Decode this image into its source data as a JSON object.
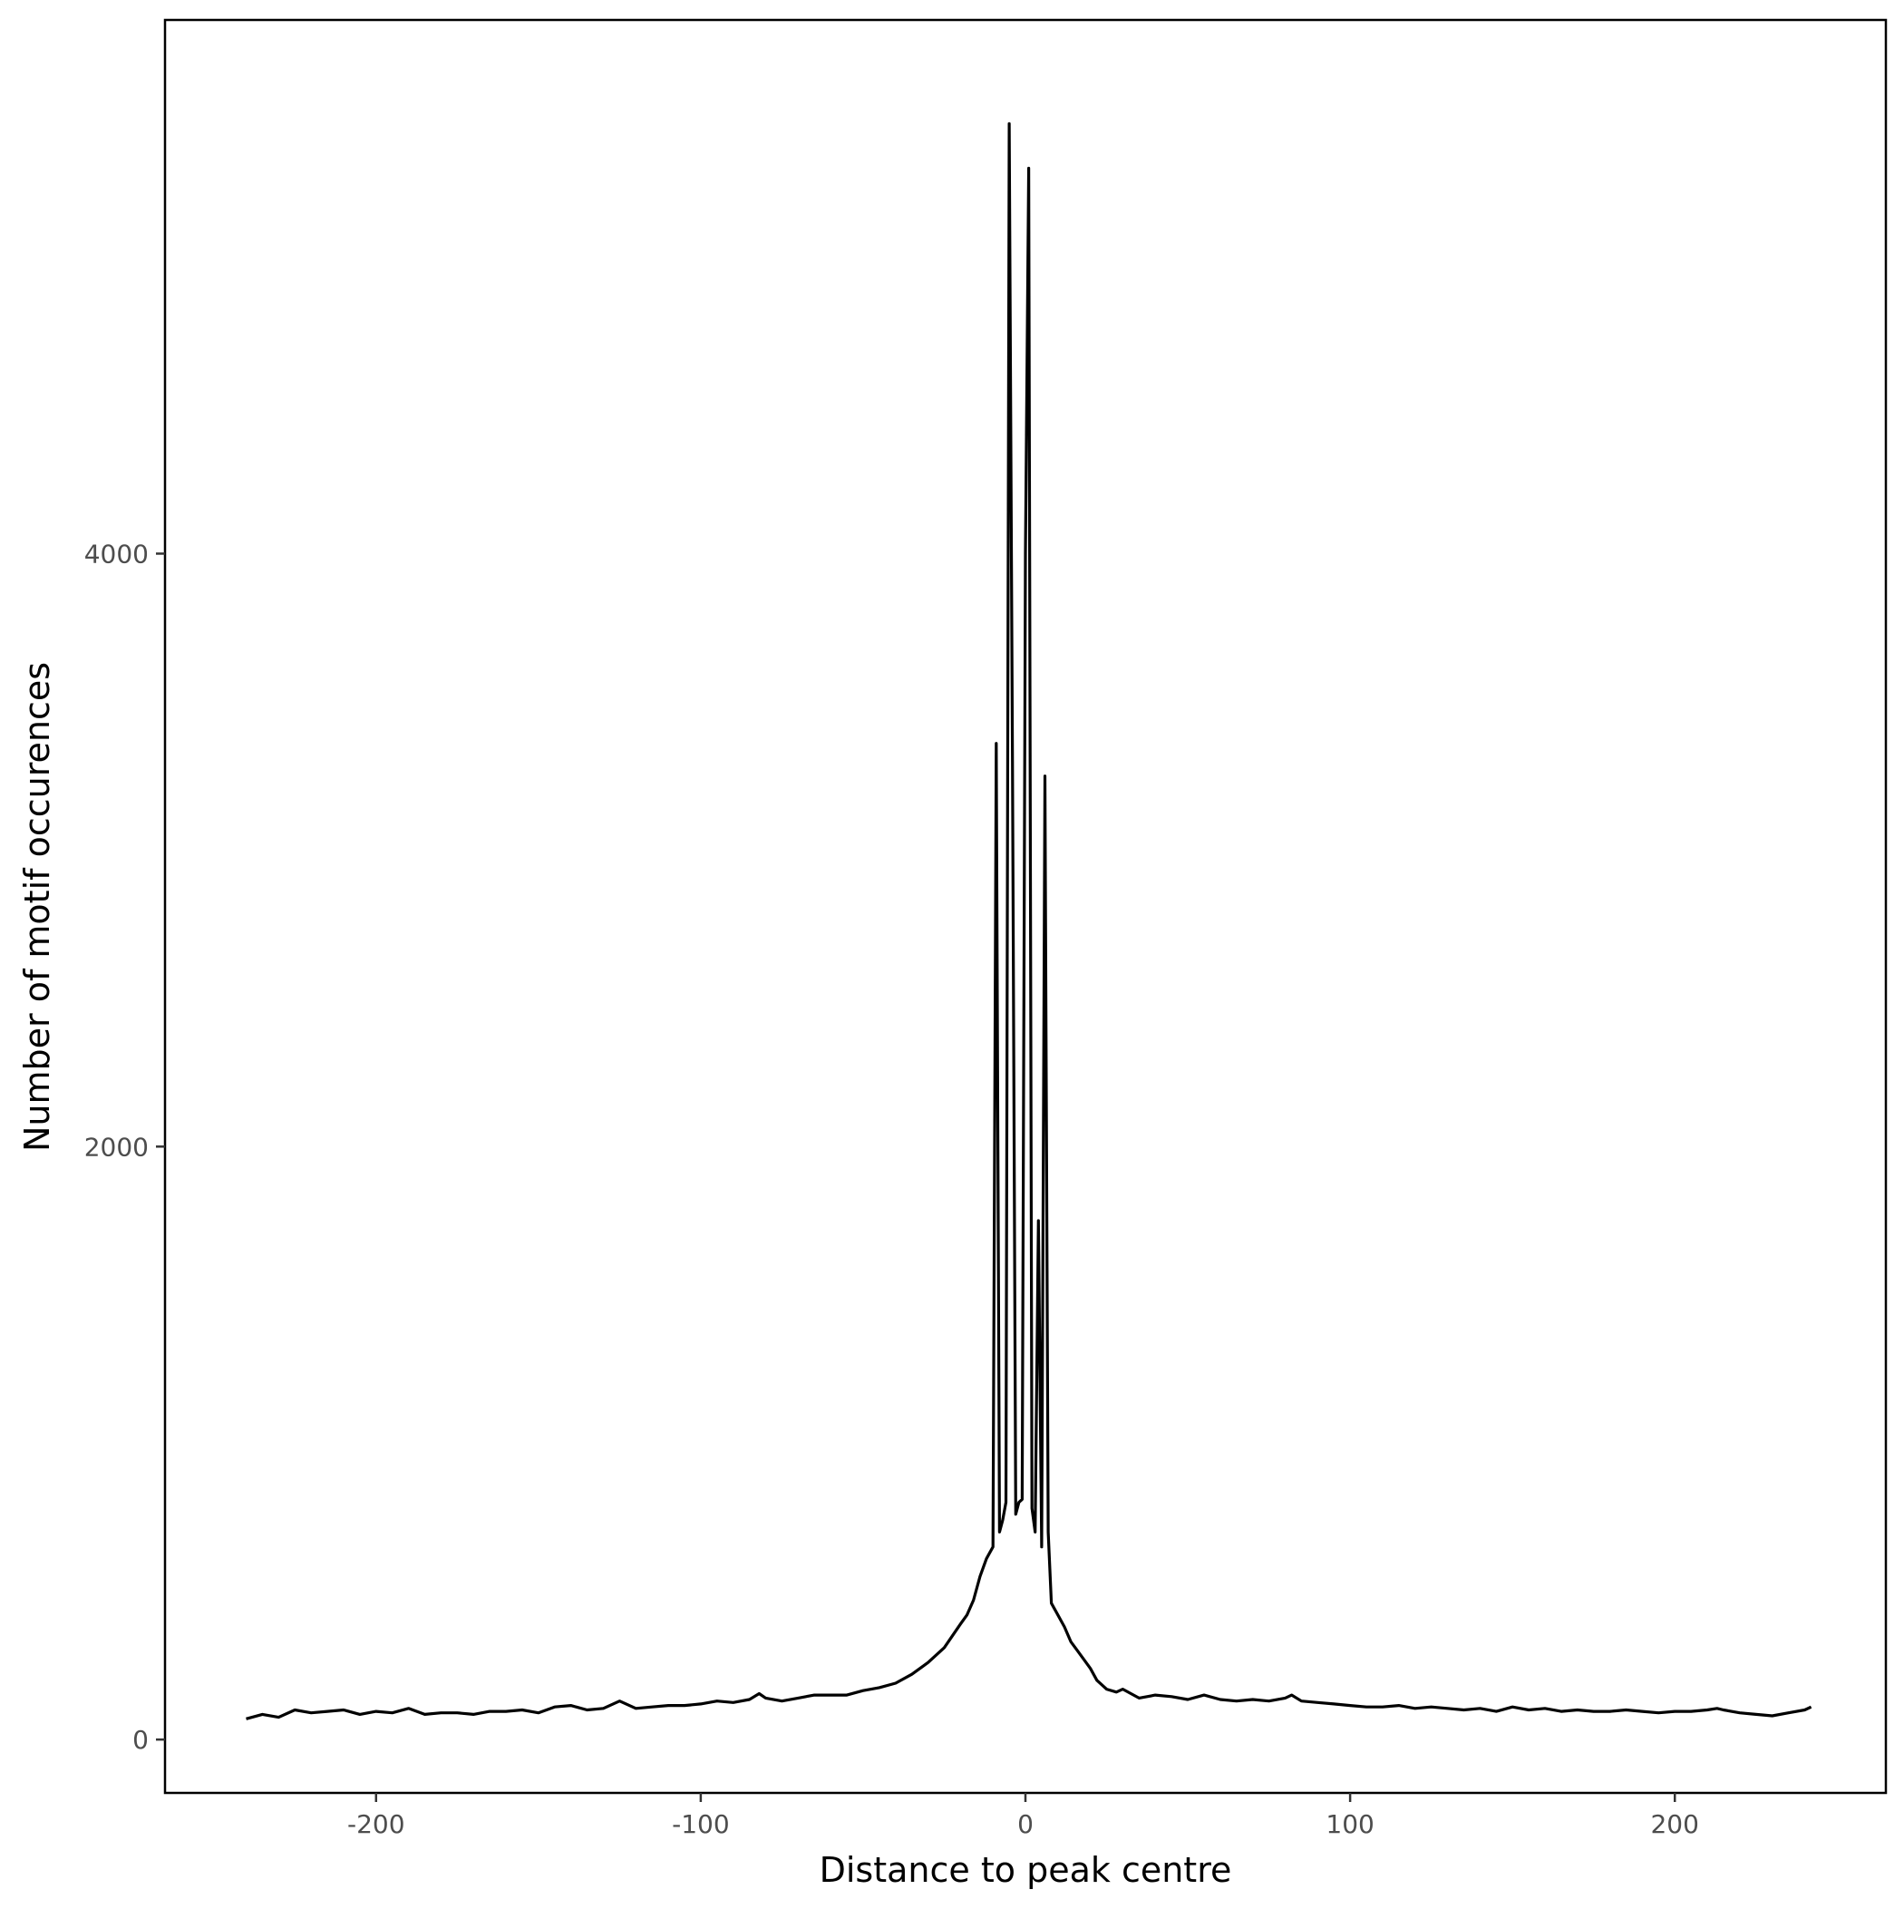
{
  "chart_data": {
    "type": "line",
    "title": "",
    "xlabel": "Distance to peak centre",
    "ylabel": "Number of motif occurences",
    "xlim": [
      -265,
      265
    ],
    "ylim": [
      -180,
      5800
    ],
    "x_ticks": [
      -200,
      -100,
      0,
      100,
      200
    ],
    "x_tick_labels": [
      "-200",
      "-100",
      "0",
      "100",
      "200"
    ],
    "y_ticks": [
      0,
      2000,
      4000
    ],
    "y_tick_labels": [
      "0",
      "2000",
      "4000"
    ],
    "grid": false,
    "legend": "none",
    "line_color": "#000000",
    "x": [
      -240,
      -235,
      -230,
      -225,
      -220,
      -215,
      -210,
      -205,
      -200,
      -195,
      -190,
      -185,
      -180,
      -175,
      -170,
      -165,
      -160,
      -155,
      -150,
      -145,
      -140,
      -135,
      -130,
      -125,
      -120,
      -115,
      -110,
      -105,
      -100,
      -95,
      -90,
      -85,
      -82,
      -80,
      -75,
      -70,
      -65,
      -60,
      -55,
      -50,
      -45,
      -40,
      -35,
      -30,
      -25,
      -20,
      -18,
      -16,
      -14,
      -12,
      -10,
      -9,
      -8,
      -7,
      -6,
      -5,
      -4,
      -3,
      -2,
      -1,
      0,
      1,
      2,
      3,
      4,
      5,
      6,
      7,
      8,
      9,
      10,
      12,
      14,
      16,
      18,
      20,
      22,
      25,
      28,
      30,
      35,
      40,
      45,
      50,
      55,
      60,
      65,
      70,
      75,
      80,
      82,
      85,
      90,
      95,
      100,
      105,
      110,
      115,
      120,
      125,
      130,
      135,
      140,
      145,
      150,
      155,
      160,
      165,
      170,
      175,
      180,
      185,
      190,
      195,
      200,
      205,
      210,
      213,
      215,
      220,
      225,
      230,
      235,
      240,
      242
    ],
    "y": [
      70,
      85,
      75,
      100,
      90,
      95,
      100,
      85,
      95,
      90,
      105,
      85,
      90,
      90,
      85,
      95,
      95,
      100,
      90,
      110,
      115,
      100,
      105,
      130,
      105,
      110,
      115,
      115,
      120,
      130,
      125,
      135,
      155,
      140,
      130,
      140,
      150,
      150,
      150,
      165,
      175,
      190,
      220,
      260,
      310,
      390,
      420,
      470,
      550,
      610,
      650,
      3360,
      700,
      740,
      800,
      5450,
      3300,
      760,
      800,
      810,
      4000,
      5300,
      780,
      700,
      1750,
      650,
      3250,
      700,
      460,
      440,
      420,
      380,
      330,
      300,
      270,
      240,
      200,
      170,
      160,
      170,
      140,
      150,
      145,
      135,
      150,
      135,
      130,
      135,
      130,
      140,
      150,
      130,
      125,
      120,
      115,
      110,
      110,
      115,
      105,
      110,
      105,
      100,
      105,
      95,
      110,
      100,
      105,
      95,
      100,
      95,
      95,
      100,
      95,
      90,
      95,
      95,
      100,
      105,
      100,
      90,
      85,
      80,
      90,
      100,
      110
    ]
  }
}
